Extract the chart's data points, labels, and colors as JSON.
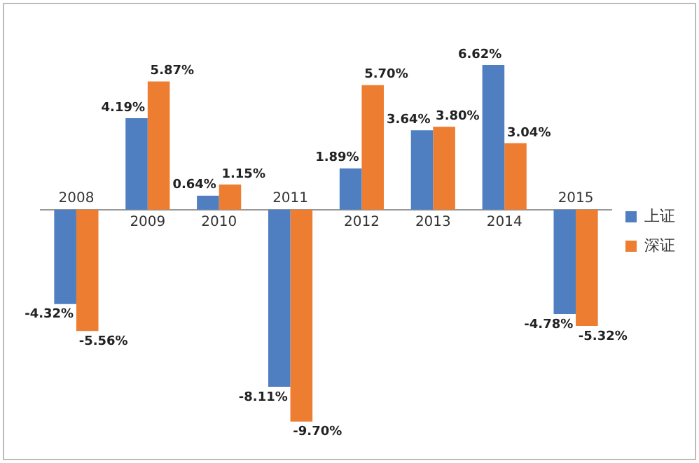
{
  "chart_data": {
    "type": "bar",
    "categories": [
      "2008",
      "2009",
      "2010",
      "2011",
      "2012",
      "2013",
      "2014",
      "2015"
    ],
    "series": [
      {
        "name": "上证",
        "color": "#4f7fc0",
        "values": [
          -4.32,
          4.19,
          0.64,
          -8.11,
          1.89,
          3.64,
          6.62,
          -4.78
        ],
        "value_labels": [
          "-4.32%",
          "4.19%",
          "0.64%",
          "-8.11%",
          "1.89%",
          "3.64%",
          "6.62%",
          "-4.78%"
        ]
      },
      {
        "name": "深证",
        "color": "#ed7d31",
        "values": [
          -5.56,
          5.87,
          1.15,
          -9.7,
          5.7,
          3.8,
          3.04,
          -5.32
        ],
        "value_labels": [
          "-5.56%",
          "5.87%",
          "1.15%",
          "-9.70%",
          "5.70%",
          "3.80%",
          "3.04%",
          "-5.32%"
        ]
      }
    ],
    "legend": "right",
    "grid": false,
    "tick_labels": "x"
  }
}
